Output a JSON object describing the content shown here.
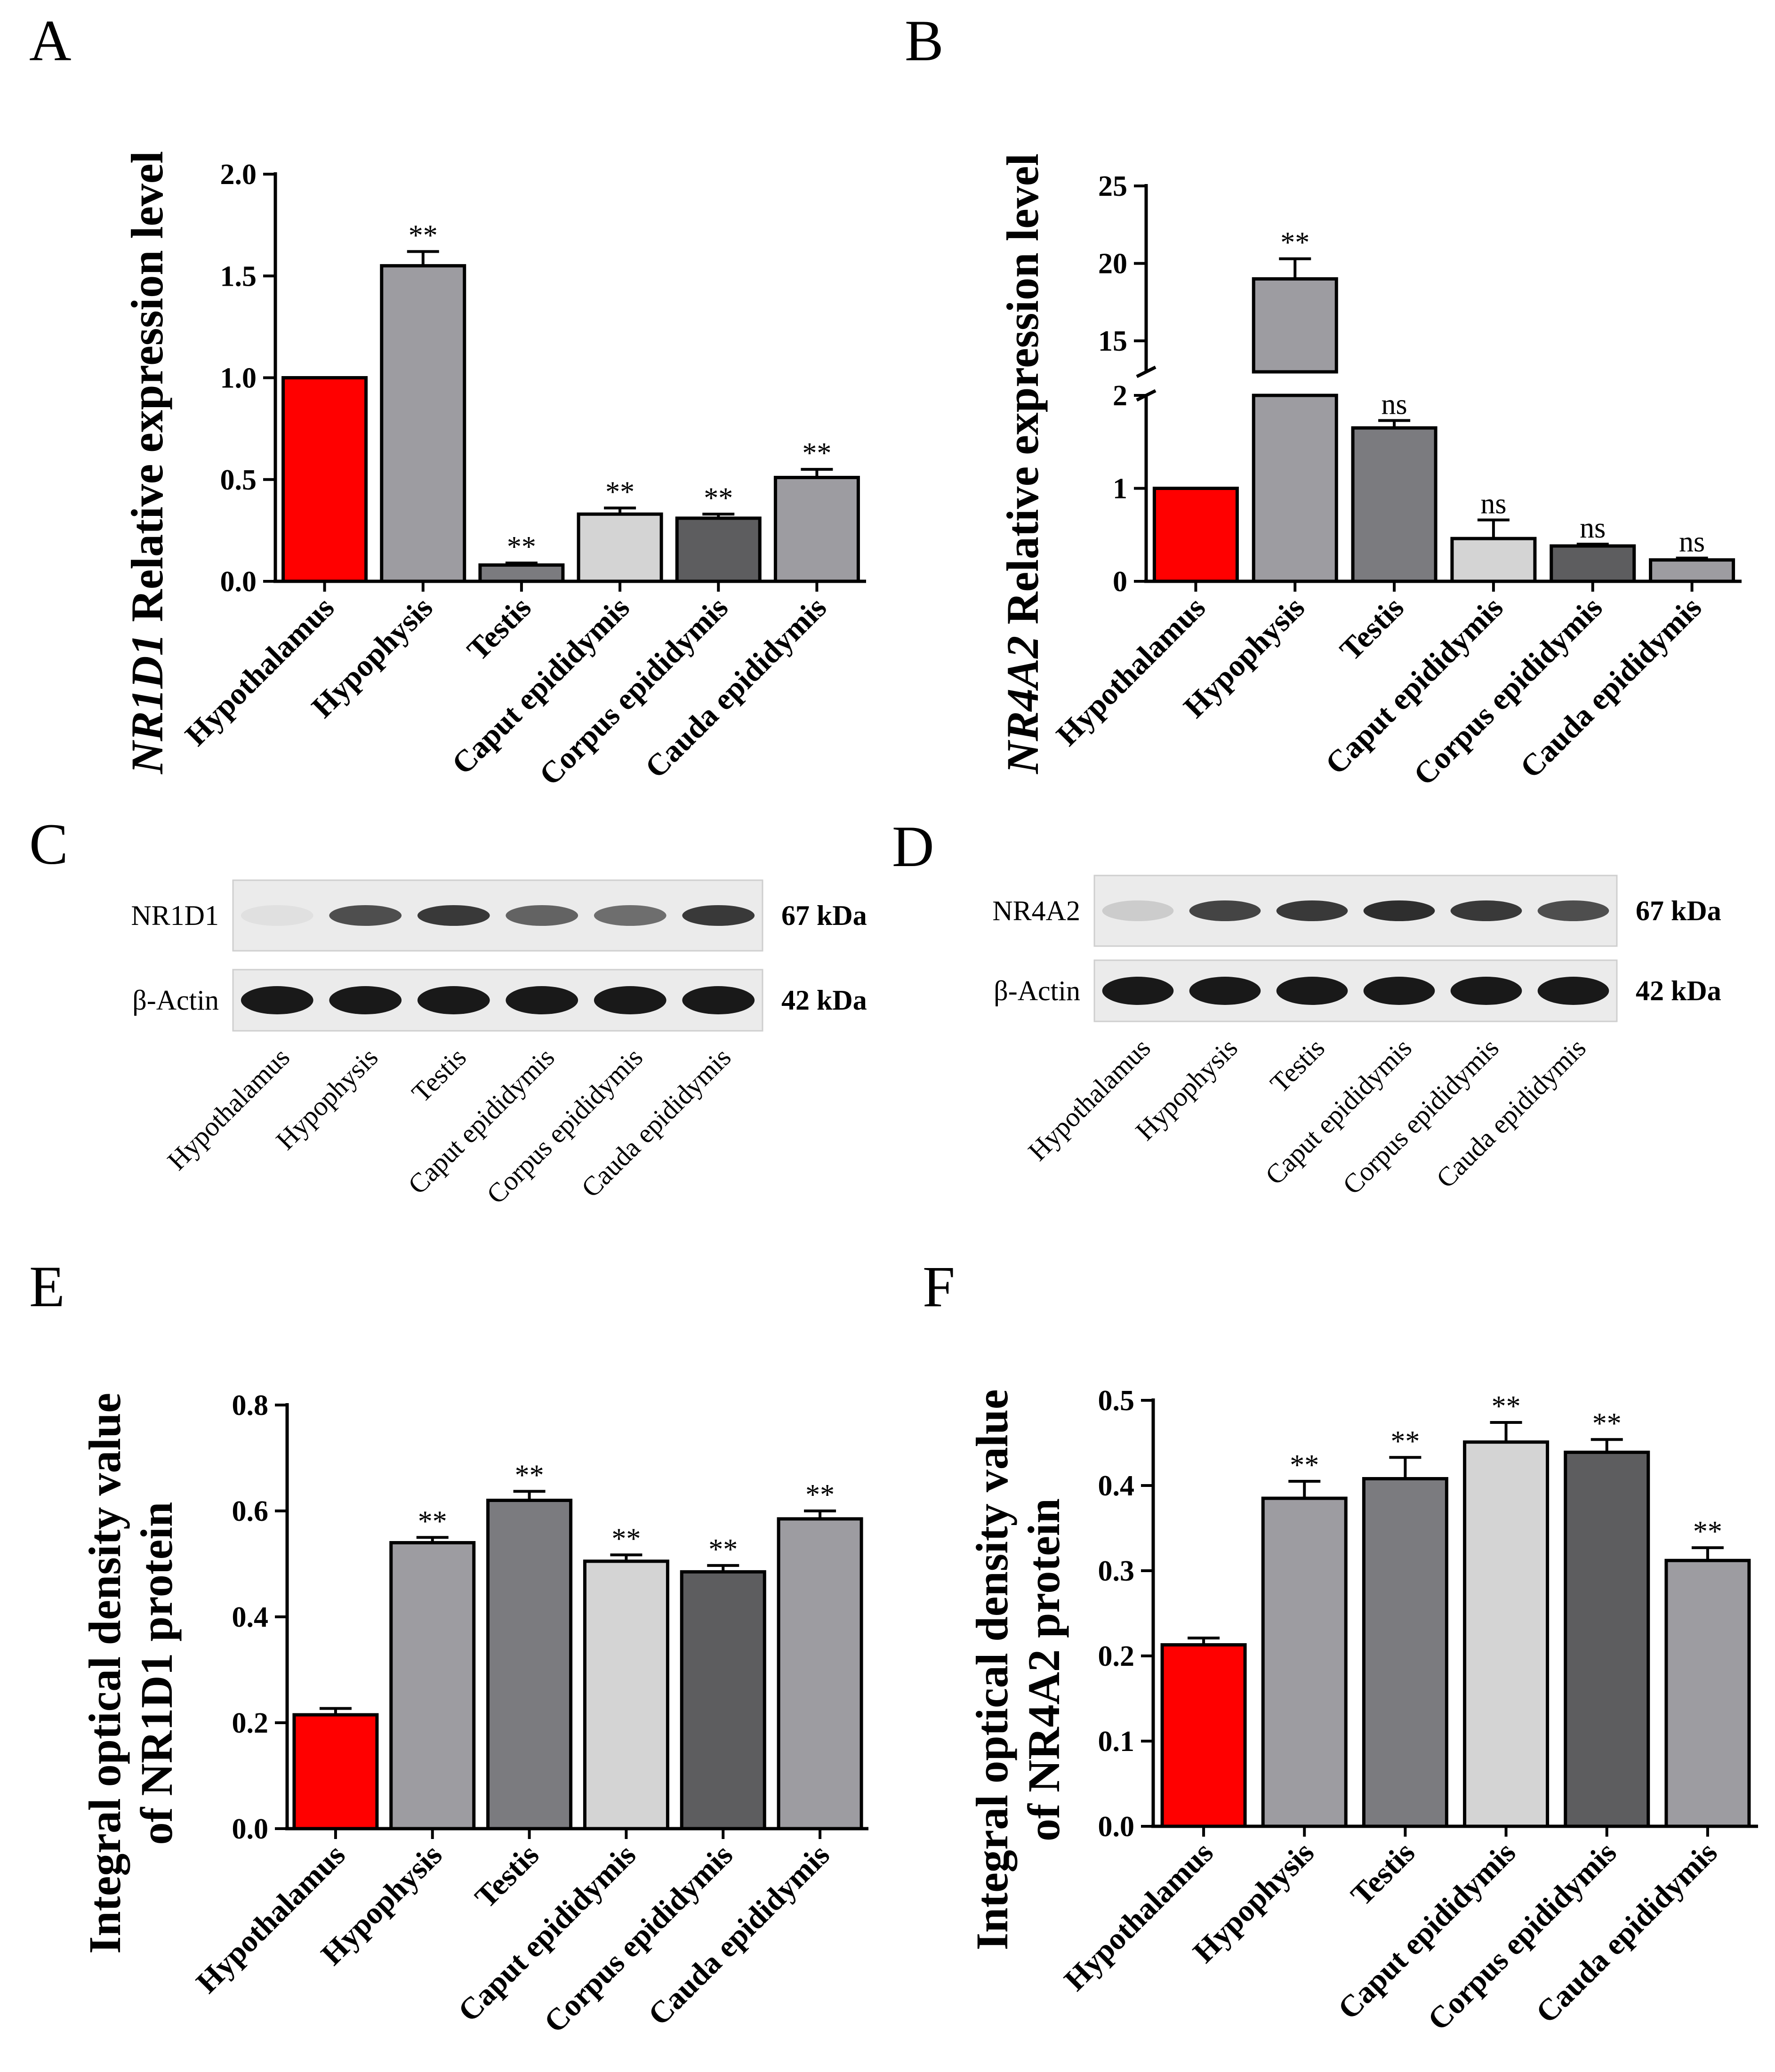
{
  "panels": {
    "A": "A",
    "B": "B",
    "C": "C",
    "D": "D",
    "E": "E",
    "F": "F"
  },
  "colors": {
    "hypothalamus": "#ff0000",
    "hypophysis": "#9d9ca1",
    "testis": "#7b7b7f",
    "caput": "#d4d4d4",
    "corpus": "#5d5d5f",
    "cauda": "#9d9ca1"
  },
  "chart_data": [
    {
      "id": "A",
      "type": "bar",
      "ylabel_italic": "NR1D1",
      "ylabel_rest": " Relative expression level",
      "categories": [
        "Hypothalamus",
        "Hypophysis",
        "Testis",
        "Caput epididymis",
        "Corpus epididymis",
        "Cauda epididymis"
      ],
      "values": [
        1.0,
        1.55,
        0.08,
        0.33,
        0.31,
        0.51
      ],
      "errors": [
        0,
        0.07,
        0.01,
        0.03,
        0.02,
        0.04
      ],
      "significance": [
        "",
        "**",
        "**",
        "**",
        "**",
        "**"
      ],
      "ylim": [
        0,
        2.0
      ],
      "yticks": [
        0.0,
        0.5,
        1.0,
        1.5,
        2.0
      ],
      "ytick_labels": [
        "0.0",
        "0.5",
        "1.0",
        "1.5",
        "2.0"
      ]
    },
    {
      "id": "B",
      "type": "bar",
      "ylabel_italic": "NR4A2",
      "ylabel_rest": " Relative expression level",
      "categories": [
        "Hypothalamus",
        "Hypophysis",
        "Testis",
        "Caput epididymis",
        "Corpus epididymis",
        "Cauda epididymis"
      ],
      "values": [
        1.0,
        19.0,
        1.65,
        0.46,
        0.38,
        0.23
      ],
      "errors": [
        0,
        1.3,
        0.08,
        0.2,
        0.02,
        0.02
      ],
      "significance": [
        "",
        "**",
        "ns",
        "ns",
        "ns",
        "ns"
      ],
      "broken_axis": {
        "lower": [
          0,
          2
        ],
        "upper": [
          13,
          25
        ]
      },
      "yticks_lower": [
        0,
        1,
        2
      ],
      "ytick_labels_lower": [
        "0",
        "1",
        "2"
      ],
      "yticks_upper": [
        15,
        20,
        25
      ],
      "ytick_labels_upper": [
        "15",
        "20",
        "25"
      ]
    },
    {
      "id": "E",
      "type": "bar",
      "ylabel_line1": "Integral optical density value",
      "ylabel_line2": "of NR1D1 protein",
      "categories": [
        "Hypothalamus",
        "Hypophysis",
        "Testis",
        "Caput epididymis",
        "Corpus epididymis",
        "Cauda epididymis"
      ],
      "values": [
        0.215,
        0.54,
        0.62,
        0.505,
        0.485,
        0.585
      ],
      "errors": [
        0.012,
        0.01,
        0.017,
        0.012,
        0.012,
        0.015
      ],
      "significance": [
        "",
        "**",
        "**",
        "**",
        "**",
        "**"
      ],
      "ylim": [
        0,
        0.8
      ],
      "yticks": [
        0.0,
        0.2,
        0.4,
        0.6,
        0.8
      ],
      "ytick_labels": [
        "0.0",
        "0.2",
        "0.4",
        "0.6",
        "0.8"
      ]
    },
    {
      "id": "F",
      "type": "bar",
      "ylabel_line1": "Integral optical density value",
      "ylabel_line2": "of NR4A2 protein",
      "categories": [
        "Hypothalamus",
        "Hypophysis",
        "Testis",
        "Caput epididymis",
        "Corpus epididymis",
        "Cauda epididymis"
      ],
      "values": [
        0.213,
        0.385,
        0.408,
        0.451,
        0.439,
        0.312
      ],
      "errors": [
        0.008,
        0.02,
        0.025,
        0.023,
        0.015,
        0.015
      ],
      "significance": [
        "",
        "**",
        "**",
        "**",
        "**",
        "**"
      ],
      "ylim": [
        0,
        0.5
      ],
      "yticks": [
        0.0,
        0.1,
        0.2,
        0.3,
        0.4,
        0.5
      ],
      "ytick_labels": [
        "0.0",
        "0.1",
        "0.2",
        "0.3",
        "0.4",
        "0.5"
      ]
    }
  ],
  "blots": [
    {
      "id": "C",
      "protein_label": "NR1D1",
      "protein_kda": "67 kDa",
      "actin_label": "β-Actin",
      "actin_kda": "42 kDa",
      "protein_band_intensity": [
        0.05,
        0.75,
        0.85,
        0.65,
        0.6,
        0.85
      ],
      "categories": [
        "Hypothalamus",
        "Hypophysis",
        "Testis",
        "Caput epididymis",
        "Corpus epididymis",
        "Cauda epididymis"
      ]
    },
    {
      "id": "D",
      "protein_label": "NR4A2",
      "protein_kda": "67 kDa",
      "actin_label": "β-Actin",
      "actin_kda": "42 kDa",
      "protein_band_intensity": [
        0.15,
        0.8,
        0.85,
        0.9,
        0.85,
        0.75
      ],
      "categories": [
        "Hypothalamus",
        "Hypophysis",
        "Testis",
        "Caput epididymis",
        "Corpus epididymis",
        "Cauda epididymis"
      ]
    }
  ]
}
